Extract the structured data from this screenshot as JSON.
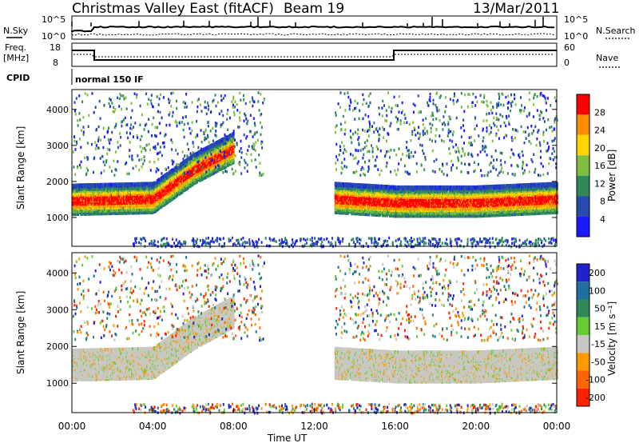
{
  "header": {
    "title": "Christmas Valley East (fitACF)",
    "beam": "Beam 19",
    "date": "13/Mar/2011"
  },
  "top_panels": {
    "nsky_label": "N.Sky",
    "nsearch_label": "N.Search",
    "nsky_ticks": [
      "10^5",
      "10^0"
    ],
    "nsearch_ticks": [
      "10^5",
      "10^0"
    ],
    "freq_label_line1": "Freq.",
    "freq_label_line2": "[MHz]",
    "freq_ticks": [
      "18",
      "8"
    ],
    "nave_label": "Nave",
    "nave_ticks": [
      "60",
      "0"
    ],
    "cpid_label": "CPID",
    "cpid_value": "normal 150 IF"
  },
  "chart_data": [
    {
      "type": "heatmap",
      "name": "power",
      "ylabel": "Slant Range [km]",
      "yticks": [
        "1000",
        "2000",
        "3000",
        "4000"
      ],
      "ylim": [
        200,
        4550
      ],
      "colorbar_label": "Power [dB]",
      "colorbar_ticks": [
        "4",
        "8",
        "12",
        "16",
        "20",
        "24",
        "28"
      ],
      "colorbar_colors": [
        "#1a1aff",
        "#274bb0",
        "#2e8b57",
        "#7fbf3f",
        "#ffd400",
        "#ff8c00",
        "#ff0000"
      ],
      "bands": [
        {
          "x": [
            "00:00",
            "04:00",
            "06:00",
            "08:00"
          ],
          "y_center_km": [
            1450,
            1500,
            2300,
            2900
          ],
          "peak_db": 28
        },
        {
          "x": [
            "13:00",
            "16:00",
            "20:00",
            "24:00"
          ],
          "y_center_km": [
            1500,
            1400,
            1400,
            1500
          ],
          "peak_db": 28
        }
      ]
    },
    {
      "type": "heatmap",
      "name": "velocity",
      "ylabel": "Slant Range [km]",
      "xlabel": "Time UT",
      "yticks": [
        "1000",
        "2000",
        "3000",
        "4000"
      ],
      "ylim": [
        200,
        4550
      ],
      "xticks": [
        "00:00",
        "04:00",
        "08:00",
        "12:00",
        "16:00",
        "20:00",
        "00:00"
      ],
      "colorbar_label": "Velocity [m s⁻¹]",
      "colorbar_ticks": [
        "200",
        "100",
        "50",
        "15",
        "-15",
        "-50",
        "-100",
        "-200"
      ],
      "colorbar_colors": [
        "#2222cc",
        "#1f6fa0",
        "#2e8b57",
        "#66cc33",
        "#c8c8c0",
        "#ff9900",
        "#ff6600",
        "#ff2200"
      ]
    }
  ]
}
